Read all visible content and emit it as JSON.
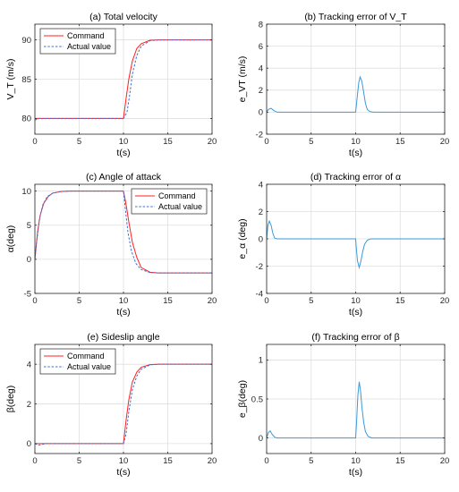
{
  "chart_data": [
    {
      "id": "a",
      "type": "line",
      "title": "(a) Total velocity",
      "xlabel": "t(s)",
      "ylabel": "V_T (m/s)",
      "xlim": [
        0,
        20
      ],
      "ylim": [
        78,
        92
      ],
      "xticks": [
        0,
        5,
        10,
        15,
        20
      ],
      "yticks": [
        80,
        85,
        90
      ],
      "grid": true,
      "legend": {
        "placement": "top-left",
        "entries": [
          "Command",
          "Actual value"
        ]
      },
      "series": [
        {
          "name": "Command",
          "color": "#ff2020",
          "style": "solid",
          "x": [
            0,
            10,
            10.3,
            10.6,
            11,
            11.5,
            12,
            13,
            14,
            20
          ],
          "y": [
            80,
            80,
            82.6,
            85,
            87.3,
            88.9,
            89.5,
            89.95,
            90,
            90
          ]
        },
        {
          "name": "Actual value",
          "color": "#3a6fd8",
          "style": "dashed",
          "x": [
            0,
            0.5,
            10,
            10.4,
            10.7,
            11,
            11.5,
            12,
            13,
            14,
            20
          ],
          "y": [
            79.8,
            80,
            80,
            80.8,
            83,
            85.6,
            88,
            89.2,
            89.9,
            90,
            90
          ]
        }
      ]
    },
    {
      "id": "b",
      "type": "line",
      "title": "(b) Tracking error of V_T",
      "xlabel": "t(s)",
      "ylabel": "e_VT (m/s)",
      "xlim": [
        0,
        20
      ],
      "ylim": [
        -2,
        8
      ],
      "xticks": [
        0,
        5,
        10,
        15,
        20
      ],
      "yticks": [
        -2,
        0,
        2,
        4,
        6,
        8
      ],
      "grid": true,
      "series": [
        {
          "name": "",
          "color": "#3a9ad9",
          "style": "solid",
          "x": [
            0,
            0.2,
            0.5,
            0.8,
            1.2,
            10,
            10.15,
            10.35,
            10.5,
            10.7,
            10.9,
            11.1,
            11.3,
            11.6,
            12,
            20
          ],
          "y": [
            0,
            0.25,
            0.35,
            0.15,
            0,
            0,
            1.2,
            2.7,
            3.2,
            2.8,
            1.8,
            0.8,
            0.25,
            0.05,
            0,
            0
          ]
        }
      ]
    },
    {
      "id": "c",
      "type": "line",
      "title": "(c) Angle of attack",
      "xlabel": "t(s)",
      "ylabel": "α(deg)",
      "xlim": [
        0,
        20
      ],
      "ylim": [
        -5,
        11
      ],
      "xticks": [
        0,
        5,
        10,
        15,
        20
      ],
      "yticks": [
        -5,
        0,
        5,
        10
      ],
      "grid": true,
      "legend": {
        "placement": "top-right",
        "entries": [
          "Command",
          "Actual value"
        ]
      },
      "series": [
        {
          "name": "Command",
          "color": "#ff2020",
          "style": "solid",
          "x": [
            0,
            0.3,
            0.6,
            1,
            1.5,
            2,
            3,
            4,
            10,
            10.3,
            10.6,
            11,
            11.5,
            12,
            13,
            14,
            20
          ],
          "y": [
            0,
            4,
            6.5,
            8.2,
            9.2,
            9.7,
            9.95,
            10,
            10,
            8,
            5.5,
            2.5,
            0.3,
            -1.2,
            -1.9,
            -2,
            -2
          ]
        },
        {
          "name": "Actual value",
          "color": "#3a6fd8",
          "style": "dashed",
          "x": [
            0,
            0.2,
            0.5,
            0.9,
            1.4,
            2,
            3,
            4,
            10,
            10.2,
            10.5,
            10.9,
            11.4,
            12,
            13,
            14,
            20
          ],
          "y": [
            0,
            2.5,
            5.8,
            8,
            9.2,
            9.7,
            9.95,
            10,
            10,
            7.5,
            4,
            1.2,
            -0.6,
            -1.5,
            -1.95,
            -2,
            -2
          ]
        }
      ]
    },
    {
      "id": "d",
      "type": "line",
      "title": "(d) Tracking error of α",
      "xlabel": "t(s)",
      "ylabel": "e_α (deg)",
      "xlim": [
        0,
        20
      ],
      "ylim": [
        -4,
        4
      ],
      "xticks": [
        0,
        5,
        10,
        15,
        20
      ],
      "yticks": [
        -4,
        -2,
        0,
        2,
        4
      ],
      "grid": true,
      "series": [
        {
          "name": "",
          "color": "#3a9ad9",
          "style": "solid",
          "x": [
            0,
            0.15,
            0.3,
            0.5,
            0.7,
            0.9,
            1.2,
            10,
            10.05,
            10.2,
            10.4,
            10.6,
            10.8,
            11,
            11.3,
            11.7,
            12,
            20
          ],
          "y": [
            0,
            1.0,
            1.3,
            1.0,
            0.4,
            0.05,
            0,
            0,
            -0.5,
            -1.6,
            -2.1,
            -1.6,
            -0.9,
            -0.4,
            -0.1,
            0,
            0,
            0
          ]
        }
      ]
    },
    {
      "id": "e",
      "type": "line",
      "title": "(e) Sideslip angle",
      "xlabel": "t(s)",
      "ylabel": "β(deg)",
      "xlim": [
        0,
        20
      ],
      "ylim": [
        -0.5,
        5
      ],
      "xticks": [
        0,
        5,
        10,
        15,
        20
      ],
      "yticks": [
        0,
        2,
        4
      ],
      "grid": true,
      "legend": {
        "placement": "top-left",
        "entries": [
          "Command",
          "Actual value"
        ]
      },
      "series": [
        {
          "name": "Command",
          "color": "#ff2020",
          "style": "solid",
          "x": [
            0,
            10,
            10.3,
            10.6,
            11,
            11.5,
            12,
            13,
            14,
            20
          ],
          "y": [
            0,
            0,
            1.2,
            2.2,
            3.1,
            3.6,
            3.85,
            3.98,
            4,
            4
          ]
        },
        {
          "name": "Actual value",
          "color": "#3a6fd8",
          "style": "dashed",
          "x": [
            0,
            0.4,
            0.7,
            1.2,
            10,
            10.3,
            10.6,
            11,
            11.5,
            12,
            13,
            14,
            20
          ],
          "y": [
            0,
            -0.08,
            -0.05,
            0,
            0,
            0.5,
            1.6,
            2.7,
            3.4,
            3.75,
            3.97,
            4,
            4
          ]
        }
      ]
    },
    {
      "id": "f",
      "type": "line",
      "title": "(f) Tracking error of β",
      "xlabel": "t(s)",
      "ylabel": "e_β(deg)",
      "xlim": [
        0,
        20
      ],
      "ylim": [
        -0.2,
        1.2
      ],
      "xticks": [
        0,
        5,
        10,
        15,
        20
      ],
      "yticks": [
        0,
        0.5,
        1
      ],
      "grid": true,
      "series": [
        {
          "name": "",
          "color": "#3a9ad9",
          "style": "solid",
          "x": [
            0,
            0.2,
            0.4,
            0.6,
            0.9,
            1.2,
            10,
            10.1,
            10.25,
            10.4,
            10.55,
            10.7,
            10.9,
            11.1,
            11.4,
            11.8,
            12,
            20
          ],
          "y": [
            0,
            0.07,
            0.09,
            0.05,
            0.01,
            0,
            0,
            0.2,
            0.55,
            0.72,
            0.6,
            0.4,
            0.2,
            0.08,
            0.02,
            0,
            0,
            0
          ]
        }
      ]
    }
  ]
}
